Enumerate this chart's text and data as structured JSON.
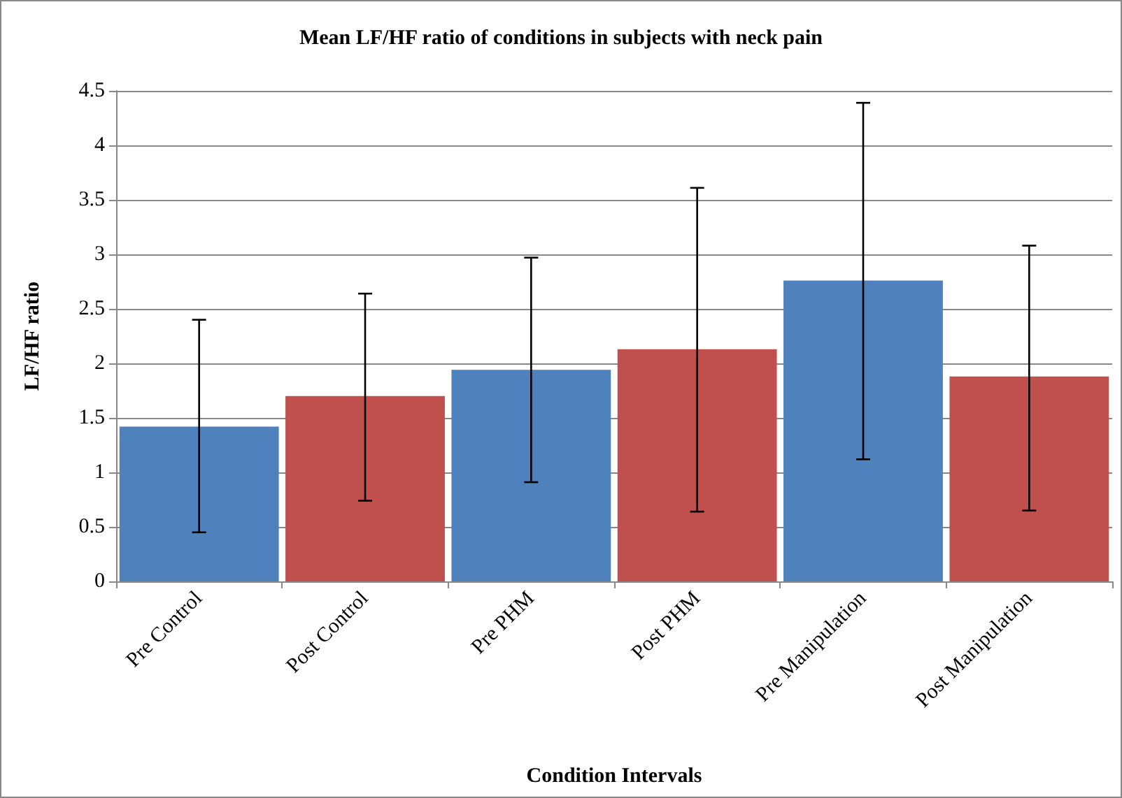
{
  "chart_data": {
    "type": "bar",
    "title": "Mean LF/HF ratio of conditions in subjects with neck pain",
    "xlabel": "Condition Intervals",
    "ylabel": "LF/HF ratio",
    "categories": [
      "Pre Control",
      "Post Control",
      "Pre PHM",
      "Post PHM",
      "Pre Manipulation",
      "Post Manipulation"
    ],
    "values": [
      1.42,
      1.7,
      1.94,
      2.13,
      2.76,
      1.88
    ],
    "colors": [
      "#4f81bd",
      "#c0504d",
      "#4f81bd",
      "#c0504d",
      "#4f81bd",
      "#c0504d"
    ],
    "errors": [
      [
        0.45,
        2.4
      ],
      [
        0.74,
        2.64
      ],
      [
        0.91,
        2.97
      ],
      [
        0.64,
        3.61
      ],
      [
        1.12,
        4.39
      ],
      [
        0.65,
        3.08
      ]
    ],
    "ylim": [
      0,
      4.5
    ],
    "yticks": [
      0,
      0.5,
      1,
      1.5,
      2,
      2.5,
      3,
      3.5,
      4,
      4.5
    ],
    "grid": "y"
  }
}
